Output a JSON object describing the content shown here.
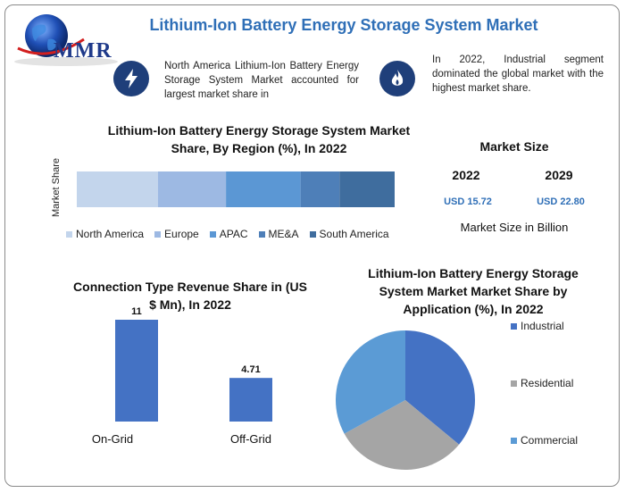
{
  "header": {
    "title": "Lithium-Ion Battery Energy Storage System Market",
    "logo_text": "MMR"
  },
  "info": {
    "left_text": "North America Lithium-Ion Battery Energy Storage System Market accounted for largest market share in",
    "right_text": "In 2022, Industrial segment dominated the global market with the highest market share.",
    "left_icon": "lightning-icon",
    "right_icon": "flame-icon"
  },
  "market_size": {
    "title": "Market Size",
    "year1": "2022",
    "year2": "2029",
    "value1": "USD 15.72",
    "value2": "USD 22.80",
    "unit_label": "Market Size in Billion"
  },
  "chart_data": [
    {
      "type": "bar",
      "orientation": "horizontal-stacked",
      "title": "Lithium-Ion Battery Energy Storage System Market Share, By Region (%), In 2022",
      "ylabel": "Market Share",
      "series": [
        {
          "name": "North America",
          "values": [
            25
          ],
          "color": "#c3d5ec"
        },
        {
          "name": "Europe",
          "values": [
            21
          ],
          "color": "#9db9e3"
        },
        {
          "name": "APAC",
          "values": [
            23
          ],
          "color": "#5b97d4"
        },
        {
          "name": "ME&A",
          "values": [
            12
          ],
          "color": "#4e7fb8"
        },
        {
          "name": "South America",
          "values": [
            17
          ],
          "color": "#3f6d9e"
        }
      ],
      "legend": "bottom"
    },
    {
      "type": "bar",
      "title": "Connection Type Revenue Share in (US $ Mn), In 2022",
      "categories": [
        "On-Grid",
        "Off-Grid"
      ],
      "values": [
        11,
        4.71
      ],
      "value_labels": [
        "11",
        "4.71"
      ],
      "color": "#4472c4"
    },
    {
      "type": "pie",
      "title": "Lithium-Ion Battery Energy Storage System Market Market Share by Application (%), In 2022",
      "series": [
        {
          "name": "Industrial",
          "value": 36,
          "color": "#4472c4"
        },
        {
          "name": "Residential",
          "value": 31,
          "color": "#a5a5a5"
        },
        {
          "name": "Commercial",
          "value": 33,
          "color": "#5b9bd5"
        }
      ],
      "legend": "right"
    }
  ]
}
